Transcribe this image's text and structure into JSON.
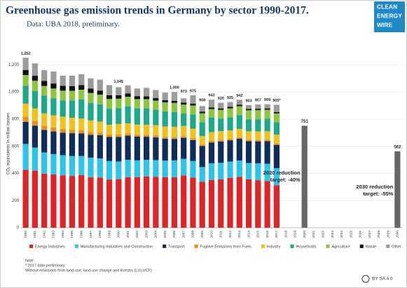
{
  "chart_data": {
    "type": "bar",
    "stacked": true,
    "title": "Greenhouse gas emission trends in Germany by sector 1990-2017.",
    "subtitle": "Data: UBA 2018, preliminary.",
    "logo": [
      "CLEAN",
      "ENERGY",
      "WIRE"
    ],
    "y_label": "CO₂ equivalents in million tonnes",
    "ylim": [
      0,
      1300
    ],
    "yticks": [
      0,
      200,
      400,
      600,
      800,
      {
        "value": 1000,
        "label": "1,000"
      },
      {
        "value": 1200,
        "label": "1,200"
      }
    ],
    "grid": true,
    "categories": [
      "1990",
      "1991",
      "1992",
      "1993",
      "1994",
      "1995",
      "1996",
      "1997",
      "1998",
      "1999",
      "2000",
      "2001",
      "2002",
      "2003",
      "2004",
      "2005",
      "2006",
      "2007",
      "2008",
      "2009",
      "2010",
      "2011",
      "2012",
      "2013",
      "2014",
      "2015",
      "2016",
      "2017",
      "2018",
      "2019",
      "2020",
      "2021",
      "2022",
      "2023",
      "2024",
      "2025",
      "2026",
      "2027",
      "2028",
      "2029",
      "2030"
    ],
    "series": [
      {
        "name": "Energy Industries",
        "color": "#e02424",
        "values": [
          427,
          420,
          398,
          392,
          386,
          382,
          388,
          372,
          370,
          355,
          358,
          372,
          372,
          378,
          374,
          372,
          372,
          384,
          369,
          339,
          352,
          356,
          367,
          375,
          357,
          350,
          343,
          313,
          null,
          null,
          null,
          null,
          null,
          null,
          null,
          null,
          null,
          null,
          null,
          null,
          null
        ]
      },
      {
        "name": "Manufacturing Industries and Construction",
        "color": "#2bc4ea",
        "values": [
          190,
          170,
          156,
          150,
          148,
          146,
          140,
          144,
          140,
          136,
          130,
          128,
          124,
          122,
          124,
          122,
          124,
          124,
          122,
          108,
          122,
          122,
          120,
          120,
          120,
          124,
          128,
          126,
          null,
          null,
          null,
          null,
          null,
          null,
          null,
          null,
          null,
          null,
          null,
          null,
          null
        ]
      },
      {
        "name": "Transport",
        "color": "#0f2d5c",
        "values": [
          163,
          162,
          166,
          167,
          166,
          168,
          166,
          168,
          171,
          177,
          181,
          178,
          176,
          170,
          167,
          161,
          158,
          154,
          154,
          154,
          154,
          157,
          157,
          160,
          160,
          162,
          166,
          171,
          null,
          null,
          null,
          null,
          null,
          null,
          null,
          null,
          null,
          null,
          null,
          null,
          null
        ]
      },
      {
        "name": "Fugitive Emissions from Fuels",
        "color": "#ec901c",
        "values": [
          38,
          34,
          32,
          30,
          28,
          26,
          24,
          22,
          20,
          18,
          17,
          16,
          15,
          15,
          14,
          14,
          13,
          13,
          13,
          12,
          12,
          12,
          11,
          11,
          11,
          11,
          11,
          11,
          null,
          null,
          null,
          null,
          null,
          null,
          null,
          null,
          null,
          null,
          null,
          null,
          null
        ]
      },
      {
        "name": "Industry",
        "color": "#f2c21a",
        "values": [
          96,
          92,
          90,
          88,
          90,
          88,
          86,
          84,
          80,
          72,
          78,
          74,
          72,
          74,
          76,
          76,
          76,
          74,
          72,
          62,
          64,
          64,
          62,
          62,
          62,
          62,
          62,
          64,
          null,
          null,
          null,
          null,
          null,
          null,
          null,
          null,
          null,
          null,
          null,
          null,
          null
        ]
      },
      {
        "name": "Households",
        "color": "#1ca88a",
        "values": [
          131,
          128,
          130,
          126,
          120,
          126,
          140,
          130,
          128,
          118,
          116,
          126,
          120,
          120,
          114,
          112,
          110,
          92,
          104,
          102,
          106,
          92,
          96,
          100,
          88,
          90,
          92,
          91,
          null,
          null,
          null,
          null,
          null,
          null,
          null,
          null,
          null,
          null,
          null,
          null,
          null
        ]
      },
      {
        "name": "Agriculture",
        "color": "#8cc63f",
        "values": [
          79,
          76,
          72,
          72,
          71,
          72,
          72,
          72,
          71,
          72,
          70,
          70,
          68,
          68,
          67,
          66,
          66,
          66,
          66,
          66,
          64,
          65,
          66,
          67,
          67,
          67,
          67,
          66,
          null,
          null,
          null,
          null,
          null,
          null,
          null,
          null,
          null,
          null,
          null,
          null,
          null
        ]
      },
      {
        "name": "Waste",
        "color": "#111111",
        "values": [
          38,
          37,
          37,
          37,
          36,
          35,
          34,
          32,
          30,
          28,
          26,
          24,
          22,
          20,
          18,
          16,
          15,
          14,
          13,
          12,
          12,
          11,
          11,
          11,
          10,
          10,
          10,
          10,
          null,
          null,
          null,
          null,
          null,
          null,
          null,
          null,
          null,
          null,
          null,
          null,
          null
        ]
      },
      {
        "name": "Other",
        "color": "#9b9b9b",
        "values": [
          90,
          91,
          79,
          88,
          75,
          77,
          80,
          76,
          80,
          74,
          59,
          60,
          56,
          63,
          60,
          56,
          66,
          32,
          62,
          41,
          57,
          41,
          35,
          36,
          28,
          31,
          30,
          53,
          null,
          null,
          null,
          null,
          null,
          null,
          null,
          null,
          null,
          null,
          null,
          null,
          null
        ]
      }
    ],
    "totals": {
      "values": [
        1252,
        null,
        null,
        null,
        null,
        null,
        null,
        null,
        null,
        null,
        1045,
        null,
        null,
        null,
        null,
        null,
        1000,
        973,
        975,
        908,
        943,
        920,
        925,
        942,
        903,
        907,
        909,
        905,
        null,
        null,
        null,
        null,
        null,
        null,
        null,
        null,
        null,
        null,
        null,
        null,
        null
      ],
      "value_labels": [
        "1,252",
        null,
        null,
        null,
        null,
        null,
        null,
        null,
        null,
        null,
        "1,045",
        null,
        null,
        null,
        null,
        null,
        "1,000",
        "973",
        "975",
        "908",
        "943",
        "920",
        "925",
        "942",
        "903",
        "907",
        "909",
        "905*",
        null,
        null,
        null,
        null,
        null,
        null,
        null,
        null,
        null,
        null,
        null,
        null,
        null
      ]
    },
    "targets": {
      "color": "#666666",
      "values": [
        null,
        null,
        null,
        null,
        null,
        null,
        null,
        null,
        null,
        null,
        null,
        null,
        null,
        null,
        null,
        null,
        null,
        null,
        null,
        null,
        null,
        null,
        null,
        null,
        null,
        null,
        null,
        null,
        null,
        null,
        751,
        null,
        null,
        null,
        null,
        null,
        null,
        null,
        null,
        null,
        562
      ]
    },
    "annotations": [
      {
        "lines": [
          "2020 reduction",
          "target: -40%"
        ],
        "category": 30
      },
      {
        "lines": [
          "2030 reduction",
          "target: -55%"
        ],
        "category": 40
      }
    ],
    "notes": [
      "Note:",
      "* 2017 data preliminary",
      "Without emissions from land-use, land-use change and forestry (LULUCF)"
    ],
    "license": "BY SA 4.0"
  }
}
